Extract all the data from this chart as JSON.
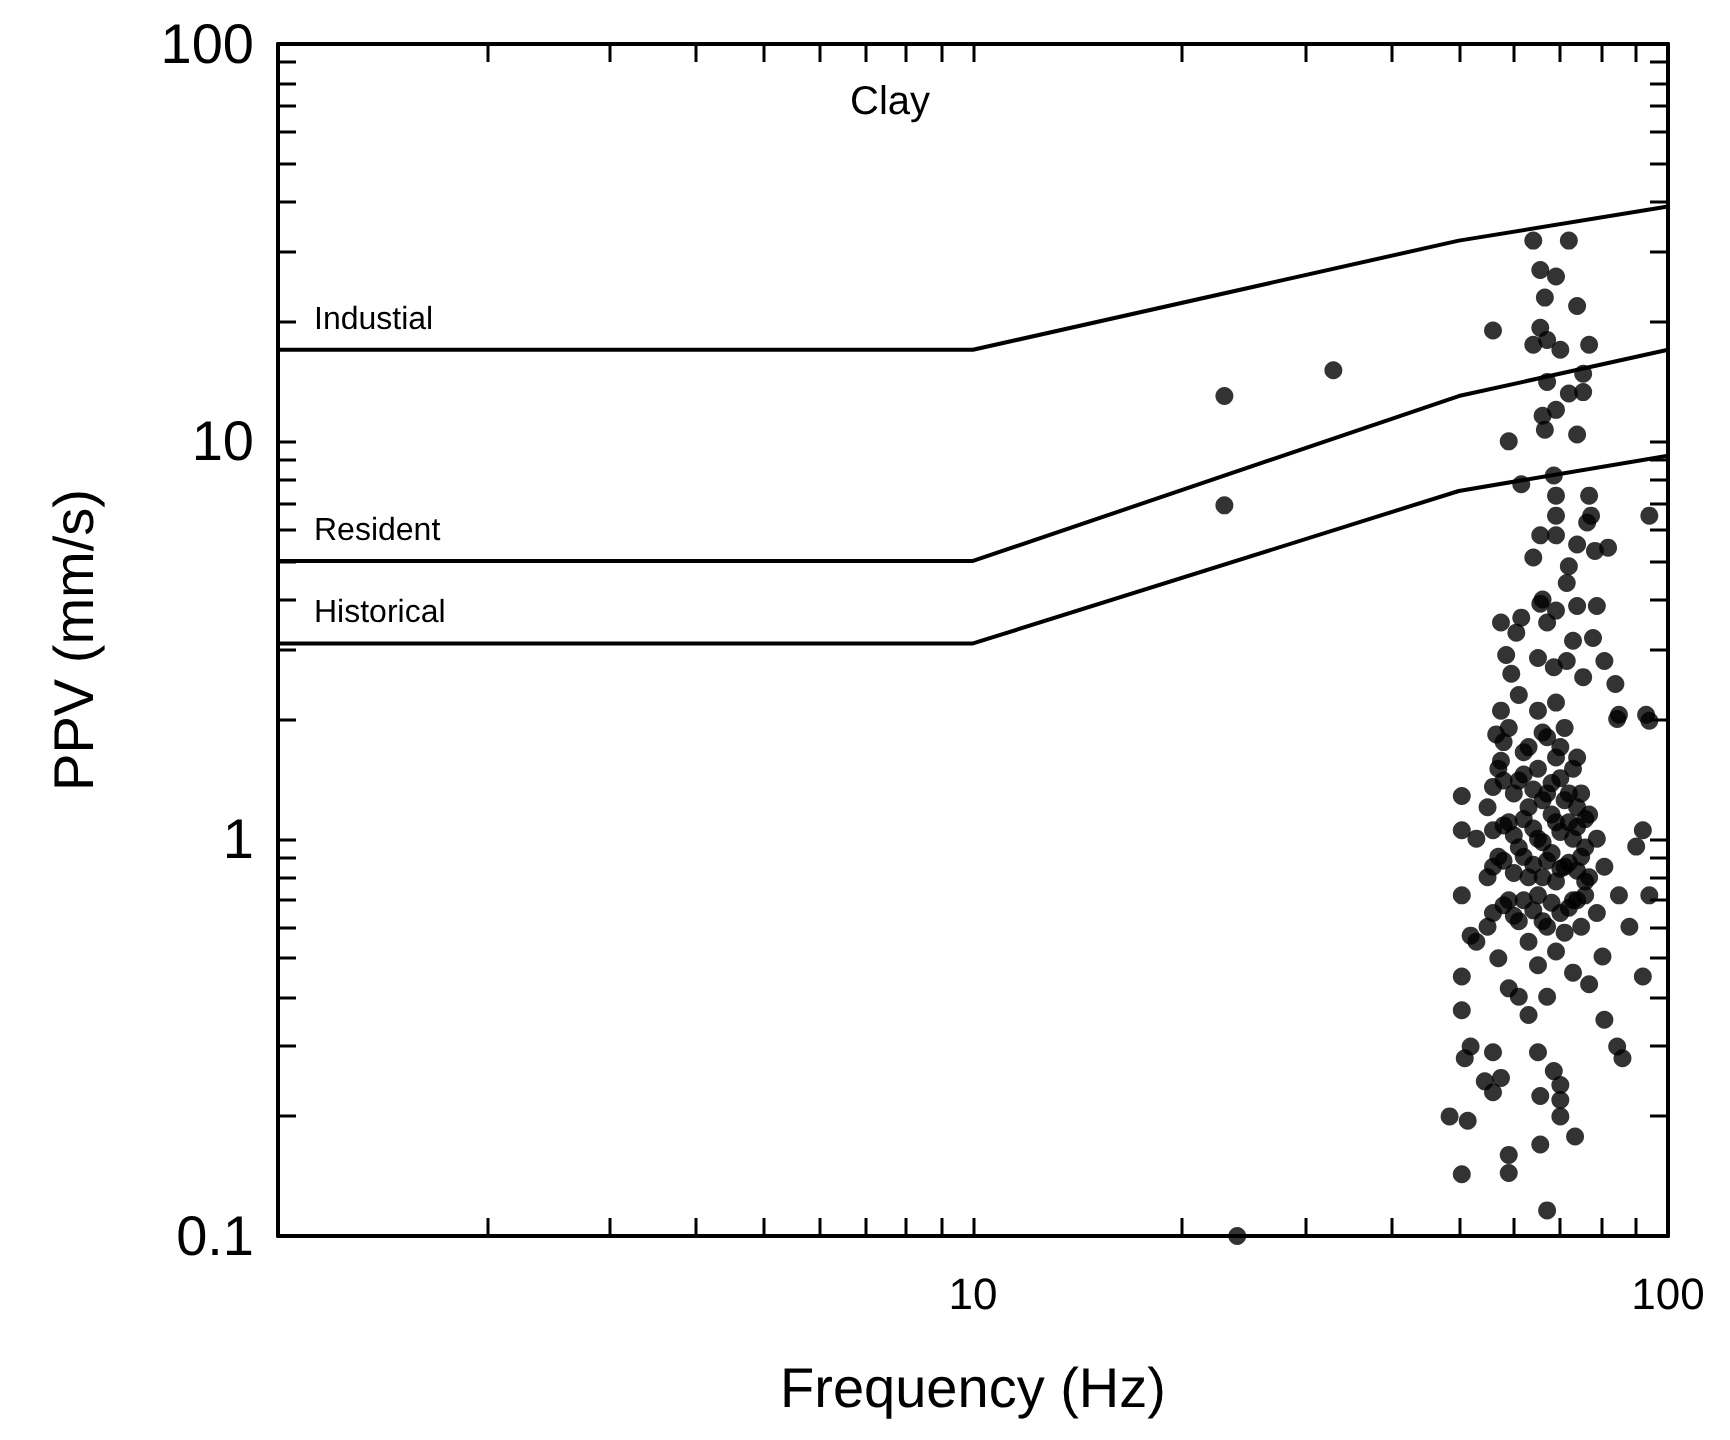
{
  "chart_data": {
    "type": "scatter",
    "title": "Clay",
    "xlabel": "Frequency (Hz)",
    "ylabel": "PPV (mm/s)",
    "log": "xy",
    "xlim": [
      1,
      100
    ],
    "ylim": [
      0.1,
      100
    ],
    "xticks": [
      {
        "value": 1,
        "label": null
      },
      {
        "value": 2,
        "label": null
      },
      {
        "value": 3,
        "label": null
      },
      {
        "value": 4,
        "label": null
      },
      {
        "value": 5,
        "label": null
      },
      {
        "value": 6,
        "label": null
      },
      {
        "value": 7,
        "label": null
      },
      {
        "value": 8,
        "label": null
      },
      {
        "value": 9,
        "label": null
      },
      10,
      {
        "value": 20,
        "label": null
      },
      {
        "value": 30,
        "label": null
      },
      {
        "value": 40,
        "label": null
      },
      {
        "value": 50,
        "label": null
      },
      {
        "value": 60,
        "label": null
      },
      {
        "value": 70,
        "label": null
      },
      {
        "value": 80,
        "label": null
      },
      {
        "value": 90,
        "label": null
      },
      100
    ],
    "yticks": [
      0.1,
      {
        "value": 0.2,
        "label": null
      },
      {
        "value": 0.3,
        "label": null
      },
      {
        "value": 0.4,
        "label": null
      },
      {
        "value": 0.5,
        "label": null
      },
      {
        "value": 0.6,
        "label": null
      },
      {
        "value": 0.7,
        "label": null
      },
      {
        "value": 0.8,
        "label": null
      },
      {
        "value": 0.9,
        "label": null
      },
      1,
      {
        "value": 2,
        "label": null
      },
      {
        "value": 3,
        "label": null
      },
      {
        "value": 4,
        "label": null
      },
      {
        "value": 5,
        "label": null
      },
      {
        "value": 6,
        "label": null
      },
      {
        "value": 7,
        "label": null
      },
      {
        "value": 8,
        "label": null
      },
      {
        "value": 9,
        "label": null
      },
      10,
      {
        "value": 20,
        "label": null
      },
      {
        "value": 30,
        "label": null
      },
      {
        "value": 40,
        "label": null
      },
      {
        "value": 50,
        "label": null
      },
      {
        "value": 60,
        "label": null
      },
      {
        "value": 70,
        "label": null
      },
      {
        "value": 80,
        "label": null
      },
      {
        "value": 90,
        "label": null
      },
      100
    ],
    "grid": false,
    "legend": false,
    "marker": "circle",
    "series": [
      {
        "color": "#000000",
        "x": [
          56,
          58,
          60,
          62,
          64,
          66,
          68,
          70,
          72,
          74,
          76,
          56,
          58,
          60,
          62,
          64,
          66,
          68,
          70,
          72,
          74,
          76,
          56,
          58,
          60,
          62,
          64,
          66,
          68,
          70,
          72,
          74,
          76,
          56,
          58,
          60,
          62,
          64,
          66,
          68,
          70,
          72,
          74,
          76,
          58,
          62,
          66,
          70,
          74,
          23,
          23,
          33,
          24,
          94,
          64,
          72,
          65.5,
          69,
          66.5,
          74,
          56,
          65.5,
          64,
          67,
          70,
          77,
          67,
          75.5,
          72,
          75.5,
          66,
          69,
          66.5,
          74,
          59,
          61.5,
          68.5,
          69,
          77,
          69,
          76.5,
          77.5,
          65.5,
          69,
          74,
          82,
          78.5,
          64,
          72,
          71.5,
          66,
          65.5,
          69,
          74,
          79,
          57.5,
          61.5,
          67,
          60.5,
          73,
          78,
          58.5,
          65,
          71.5,
          81,
          59.5,
          68.5,
          75.5,
          84,
          57.5,
          85,
          93,
          94,
          84.5,
          56.6,
          57.5,
          50.5,
          50.5,
          92,
          90,
          94,
          85,
          50.5,
          88,
          52,
          80.5,
          92,
          50.5,
          77,
          50.5,
          81,
          84.5,
          86,
          52,
          56,
          51,
          65,
          54.5,
          57.5,
          68.5,
          70,
          56,
          65.5,
          70,
          70,
          48.5,
          51.5,
          73.5,
          65.5,
          59,
          59,
          50.5,
          67,
          55,
          55,
          55,
          57,
          57,
          57,
          59,
          59,
          59,
          59,
          61,
          61,
          61,
          61,
          61,
          63,
          63,
          63,
          63,
          63,
          65,
          65,
          65,
          65,
          65,
          67,
          67,
          67,
          67,
          67,
          69,
          69,
          69,
          69,
          69,
          71,
          71,
          71,
          71,
          73,
          73,
          73,
          73,
          75,
          75,
          75,
          77,
          77,
          79,
          79,
          53,
          53,
          81
        ],
        "values": [
          0.65,
          0.68,
          0.64,
          0.7,
          0.66,
          0.62,
          0.69,
          0.65,
          0.67,
          0.7,
          0.72,
          0.85,
          0.88,
          0.82,
          0.9,
          0.86,
          0.8,
          0.92,
          0.84,
          0.87,
          0.83,
          0.78,
          1.05,
          1.08,
          1.02,
          1.12,
          1.06,
          0.98,
          1.15,
          1.04,
          1.1,
          1.07,
          0.95,
          1.35,
          1.4,
          1.3,
          1.45,
          1.33,
          1.25,
          1.38,
          1.42,
          1.3,
          1.2,
          1.12,
          1.75,
          1.65,
          1.85,
          1.7,
          1.6,
          13,
          6.9,
          15.1,
          0.1,
          6.5,
          32,
          32,
          27,
          26,
          23,
          21.9,
          19,
          19.3,
          17.5,
          18,
          17,
          17.5,
          14.1,
          14.8,
          13.2,
          13.3,
          11.6,
          12,
          10.7,
          10.4,
          10,
          7.8,
          8.2,
          7.3,
          7.3,
          6.5,
          6.25,
          6.5,
          5.8,
          5.8,
          5.5,
          5.4,
          5.3,
          5.1,
          4.85,
          4.4,
          4,
          3.9,
          3.75,
          3.85,
          3.85,
          3.5,
          3.6,
          3.5,
          3.3,
          3.15,
          3.2,
          2.9,
          2.85,
          2.8,
          2.8,
          2.6,
          2.7,
          2.55,
          2.45,
          2.1,
          2.05,
          2.05,
          1.98,
          2,
          1.83,
          1.57,
          1.28,
          1.05,
          1.05,
          0.955,
          0.72,
          0.72,
          0.72,
          0.6,
          0.57,
          0.505,
          0.45,
          0.45,
          0.43,
          0.37,
          0.35,
          0.3,
          0.28,
          0.3,
          0.29,
          0.28,
          0.29,
          0.245,
          0.25,
          0.26,
          0.24,
          0.23,
          0.225,
          0.22,
          0.2,
          0.2,
          0.195,
          0.178,
          0.17,
          0.16,
          0.144,
          0.143,
          0.116,
          0.8,
          1.2,
          0.6,
          1.5,
          0.9,
          0.5,
          1.9,
          1.1,
          0.7,
          0.42,
          2.3,
          1.4,
          0.95,
          0.62,
          0.4,
          1.7,
          1.2,
          0.8,
          0.55,
          0.36,
          2.1,
          1.5,
          1,
          0.72,
          0.48,
          1.8,
          1.3,
          0.88,
          0.6,
          0.4,
          2.2,
          1.6,
          1.1,
          0.78,
          0.52,
          1.9,
          1.25,
          0.85,
          0.58,
          1.5,
          1,
          0.7,
          0.46,
          1.3,
          0.9,
          0.6,
          1.15,
          0.8,
          1,
          0.65,
          1,
          0.55,
          0.85
        ]
      },
      {
        "type": "line",
        "name": "Industial",
        "color": "#000000",
        "marker": "none",
        "line_style": "solid",
        "x": [
          1,
          10,
          50,
          100
        ],
        "values": [
          17,
          17,
          32,
          39
        ]
      },
      {
        "type": "line",
        "name": "Resident",
        "color": "#000000",
        "marker": "none",
        "line_style": "solid",
        "x": [
          1,
          10,
          50,
          100
        ],
        "values": [
          5,
          5,
          13,
          17
        ]
      },
      {
        "type": "line",
        "name": "Historical",
        "color": "#000000",
        "marker": "none",
        "line_style": "solid",
        "x": [
          1,
          10,
          50,
          100
        ],
        "values": [
          3.1,
          3.1,
          7.5,
          9.2
        ]
      }
    ]
  }
}
